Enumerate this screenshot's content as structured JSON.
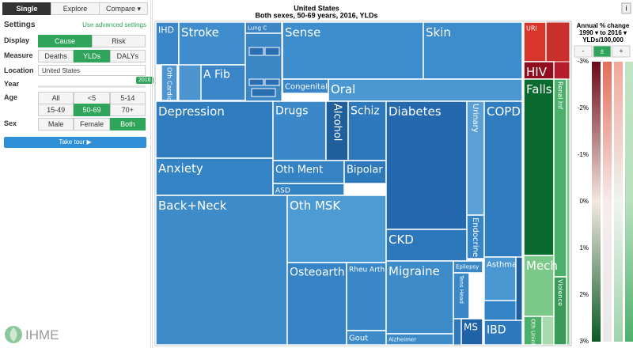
{
  "tabs": {
    "items": [
      "Single",
      "Explore",
      "Compare ▾"
    ],
    "selected": 0
  },
  "settings": {
    "title": "Settings",
    "advanced_link": "Use advanced settings",
    "display": {
      "label": "Display",
      "options": [
        "Cause",
        "Risk"
      ],
      "selected": 0
    },
    "measure": {
      "label": "Measure",
      "options": [
        "Deaths",
        "YLDs",
        "DALYs"
      ],
      "selected": 1
    },
    "location": {
      "label": "Location",
      "value": "United States"
    },
    "year": {
      "label": "Year",
      "value": 2016
    },
    "age": {
      "label": "Age",
      "options": [
        "All",
        "<5",
        "5-14",
        "15-49",
        "50-69",
        "70+"
      ],
      "selected": 4
    },
    "sex": {
      "label": "Sex",
      "options": [
        "Male",
        "Female",
        "Both"
      ],
      "selected": 2
    },
    "tour_button": "Take tour ▶"
  },
  "logo": "IHME",
  "treemap": {
    "title": "United States",
    "subtitle": "Both sexes, 50-69 years, 2016, YLDs",
    "info_button": "i",
    "nodes": [
      {
        "label": "IHD",
        "color": "#3a86c8"
      },
      {
        "label": "Stroke",
        "color": "#3f8dcc"
      },
      {
        "label": "Oth Cardio",
        "color": "#4c95d0"
      },
      {
        "label": "A Fib",
        "color": "#3a86c8"
      },
      {
        "label": "Lung C",
        "color": "#3d87c6"
      },
      {
        "label": "Sense",
        "color": "#3d8ccb"
      },
      {
        "label": "Skin",
        "color": "#3d8ccb"
      },
      {
        "label": "Congenital",
        "color": "#3a86c8"
      },
      {
        "label": "Oral",
        "color": "#4a97d2"
      },
      {
        "label": "Depression",
        "color": "#2f7cbf"
      },
      {
        "label": "Anxiety",
        "color": "#3483c4"
      },
      {
        "label": "Drugs",
        "color": "#3a88c8"
      },
      {
        "label": "Alcohol",
        "color": "#1f5f9e"
      },
      {
        "label": "Schiz",
        "color": "#2e79bb"
      },
      {
        "label": "Oth Ment",
        "color": "#3683c4"
      },
      {
        "label": "Bipolar",
        "color": "#2e79bb"
      },
      {
        "label": "ASD",
        "color": "#3483c4"
      },
      {
        "label": "Back+Neck",
        "color": "#3d8bc9"
      },
      {
        "label": "Oth MSK",
        "color": "#4d9bd4"
      },
      {
        "label": "Osteoarth",
        "color": "#3684c5"
      },
      {
        "label": "Rheu Arth",
        "color": "#3a88c8"
      },
      {
        "label": "Gout",
        "color": "#3d8bc9"
      },
      {
        "label": "Diabetes",
        "color": "#2469ad"
      },
      {
        "label": "Urinary",
        "color": "#5a9fd6"
      },
      {
        "label": "Endocrine",
        "color": "#3785c6"
      },
      {
        "label": "CKD",
        "color": "#2d78ba"
      },
      {
        "label": "COPD",
        "color": "#2f7cbf"
      },
      {
        "label": "Asthma",
        "color": "#4a97d2"
      },
      {
        "label": "Migraine",
        "color": "#3d8bc9"
      },
      {
        "label": "Alzheimer",
        "color": "#3d8bc9"
      },
      {
        "label": "Epilepsy",
        "color": "#3a88c8"
      },
      {
        "label": "Tens Head",
        "color": "#3a88c8"
      },
      {
        "label": "MS",
        "color": "#1f63a6"
      },
      {
        "label": "IBD",
        "color": "#2e79bb"
      },
      {
        "label": "URI",
        "color": "#d9362b"
      },
      {
        "label": "HIV",
        "color": "#8f0f1e"
      },
      {
        "label": "Falls",
        "color": "#0b6b2e"
      },
      {
        "label": "Renal Inf",
        "color": "#4db06a"
      },
      {
        "label": "Mech",
        "color": "#7bc98a"
      },
      {
        "label": "Violence",
        "color": "#3a9a58"
      },
      {
        "label": "Oth Unint",
        "color": "#4db06a"
      }
    ]
  },
  "legend": {
    "title_lines": [
      "Annual % change",
      "1990 ▾ to 2016 ▾",
      "YLDs/100,000"
    ],
    "buttons": [
      "-",
      "±",
      "+"
    ],
    "selected_button": 1,
    "ticks": [
      "-3%",
      "-2%",
      "-1%",
      "0%",
      "1%",
      "2%",
      "3%"
    ]
  }
}
